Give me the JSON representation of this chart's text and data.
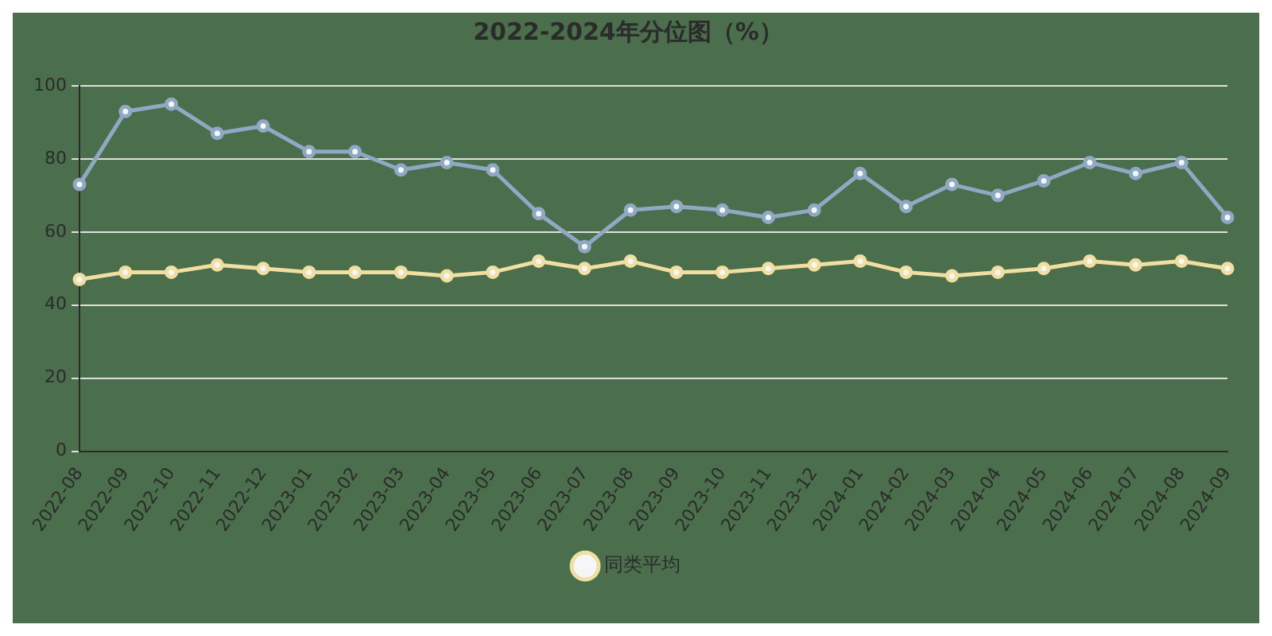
{
  "chart_data": {
    "type": "line",
    "title": "2022-2024年分位图（%）",
    "categories": [
      "2022-08",
      "2022-09",
      "2022-10",
      "2022-11",
      "2022-12",
      "2023-01",
      "2023-02",
      "2023-03",
      "2023-04",
      "2023-05",
      "2023-06",
      "2023-07",
      "2023-08",
      "2023-09",
      "2023-10",
      "2023-11",
      "2023-12",
      "2024-01",
      "2024-02",
      "2024-03",
      "2024-04",
      "2024-05",
      "2024-06",
      "2024-07",
      "2024-08",
      "2024-09"
    ],
    "series": [
      {
        "color": "#8fa9c4",
        "values": [
          73,
          93,
          95,
          87,
          89,
          82,
          82,
          77,
          79,
          77,
          65,
          56,
          66,
          67,
          66,
          64,
          66,
          76,
          67,
          73,
          70,
          74,
          79,
          76,
          79,
          64
        ]
      },
      {
        "name": "同类平均",
        "color": "#f0dfa0",
        "values": [
          47,
          49,
          49,
          51,
          50,
          49,
          49,
          49,
          48,
          49,
          52,
          50,
          52,
          49,
          49,
          50,
          51,
          52,
          49,
          48,
          49,
          50,
          52,
          51,
          52,
          50
        ]
      }
    ],
    "ylim": [
      0,
      100
    ],
    "yticks": [
      0,
      20,
      40,
      60,
      80,
      100
    ],
    "grid": "y",
    "legend": "bottom",
    "marker": "circle",
    "line_style": "solid"
  }
}
